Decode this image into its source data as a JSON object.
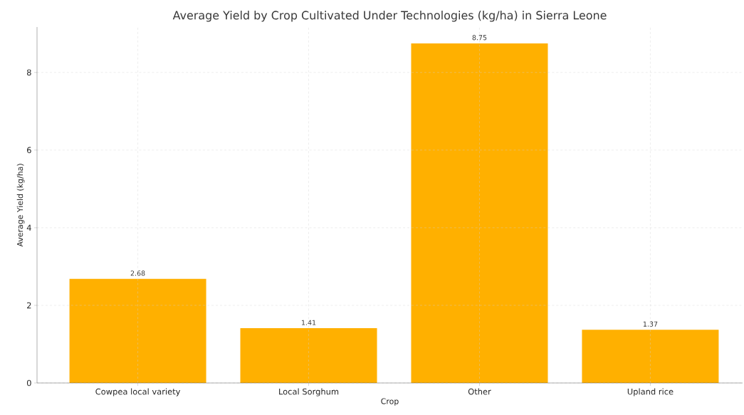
{
  "chart_data": {
    "type": "bar",
    "title": "Average Yield by Crop Cultivated Under Technologies (kg/ha) in Sierra Leone",
    "xlabel": "Crop",
    "ylabel": "Average Yield (kg/ha)",
    "categories": [
      "Cowpea local variety",
      "Local Sorghum",
      "Other",
      "Upland rice"
    ],
    "values": [
      2.68,
      1.41,
      8.75,
      1.37
    ],
    "color": "#ffb000",
    "ylim": [
      0,
      9.17
    ],
    "yticks": [
      0,
      2,
      4,
      6,
      8
    ],
    "grid": true,
    "data_labels": true
  }
}
